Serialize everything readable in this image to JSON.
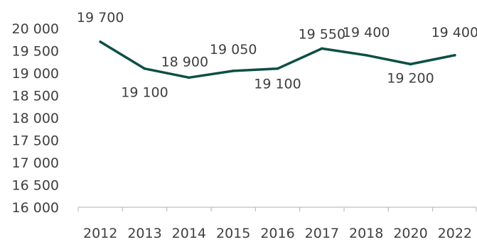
{
  "chart_data": {
    "type": "line",
    "categories": [
      "2012",
      "2013",
      "2014",
      "2015",
      "2016",
      "2017",
      "2018",
      "2020",
      "2022"
    ],
    "series": [
      {
        "values": [
          19700,
          19100,
          18900,
          19050,
          19100,
          19550,
          19400,
          19200,
          19400
        ],
        "data_labels": [
          "19 700",
          "19 100",
          "18 900",
          "19 050",
          "19 100",
          "19 550",
          "19 400",
          "19 200",
          "19 400"
        ],
        "color": "#0d4f45"
      }
    ],
    "ylim": [
      16000,
      20000
    ],
    "yticks": [
      20000,
      19500,
      19000,
      18500,
      18000,
      17500,
      17000,
      16500,
      16000
    ],
    "ytick_labels": [
      "20 000",
      "19 500",
      "19 000",
      "18 500",
      "18 000",
      "17 500",
      "17 000",
      "16 500",
      "16 000"
    ],
    "grid": false,
    "axis_color": "#bfbfbf",
    "text_color": "#3f3f3f"
  }
}
